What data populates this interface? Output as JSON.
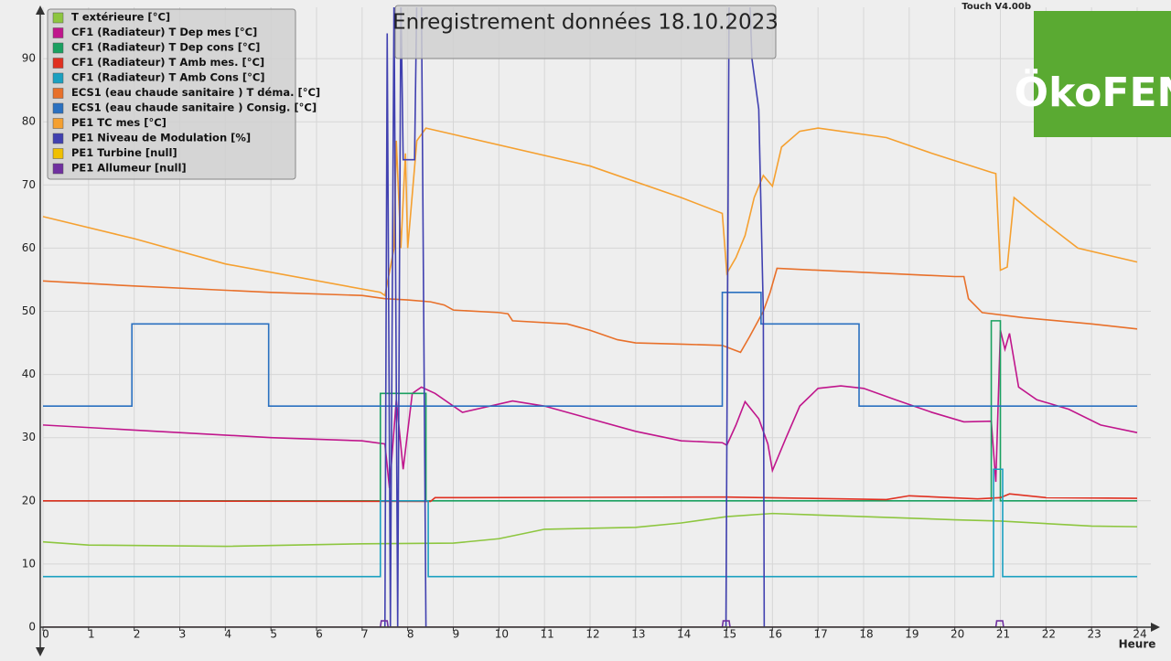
{
  "chart_data": {
    "type": "line",
    "title": "Enregistrement données  18.10.2023",
    "version": "Touch V4.00b",
    "logo": "ÖkoFEN",
    "x_label": "Heure",
    "xlim": [
      0,
      24
    ],
    "ylim": [
      0,
      98
    ],
    "xticks": [
      0,
      1,
      2,
      3,
      4,
      5,
      6,
      7,
      8,
      9,
      10,
      11,
      12,
      13,
      14,
      15,
      16,
      17,
      18,
      19,
      20,
      21,
      22,
      23,
      24
    ],
    "yticks": [
      0,
      10,
      20,
      30,
      40,
      50,
      60,
      70,
      80,
      90
    ],
    "grid": true,
    "series": [
      {
        "name": "T extérieure [°C]",
        "color": "#8dc63f",
        "x": [
          0,
          1,
          4,
          7,
          9,
          10,
          11,
          13,
          14,
          15,
          16,
          18,
          20,
          21,
          23,
          24
        ],
        "values": [
          13.5,
          13,
          12.8,
          13.2,
          13.3,
          14,
          15.5,
          15.8,
          16.5,
          17.5,
          18,
          17.5,
          17,
          16.8,
          16,
          15.9
        ]
      },
      {
        "name": "CF1 (Radiateur) T Dep mes [°C]",
        "color": "#c0168c",
        "x": [
          0,
          2,
          5,
          7,
          7.5,
          7.6,
          7.75,
          7.9,
          8.1,
          8.3,
          8.6,
          9.2,
          10.3,
          11,
          12,
          13,
          14,
          14.9,
          15,
          15.2,
          15.4,
          15.7,
          15.9,
          16,
          16.3,
          16.6,
          17,
          17.5,
          18,
          18.7,
          19.5,
          20.2,
          20.8,
          20.9,
          21,
          21.1,
          21.2,
          21.4,
          21.8,
          22.5,
          23.2,
          24
        ],
        "values": [
          32,
          31.2,
          30,
          29.5,
          29,
          22,
          36,
          25,
          37,
          38,
          37,
          34,
          35.8,
          35,
          33,
          31,
          29.5,
          29.2,
          28.8,
          32,
          35.7,
          33,
          29,
          24.8,
          30,
          35,
          37.8,
          38.2,
          37.8,
          36,
          34,
          32.5,
          32.6,
          23,
          47,
          44,
          46.5,
          38,
          36,
          34.5,
          32,
          30.8
        ]
      },
      {
        "name": "CF1 (Radiateur) T Dep cons [°C]",
        "color": "#1aa060",
        "x": [
          0,
          7.4,
          7.4,
          8.4,
          8.4,
          20.8,
          20.8,
          21,
          21,
          24
        ],
        "values": [
          20,
          20,
          37,
          37,
          20,
          20,
          48.5,
          48.5,
          20,
          20
        ]
      },
      {
        "name": "CF1 (Radiateur) T Amb mes. [°C]",
        "color": "#e03020",
        "x": [
          0,
          8.5,
          8.6,
          15,
          18.5,
          19,
          20.5,
          21,
          21.2,
          22,
          24
        ],
        "values": [
          20,
          19.9,
          20.5,
          20.6,
          20.2,
          20.8,
          20.3,
          20.5,
          21.1,
          20.5,
          20.4
        ]
      },
      {
        "name": "CF1 (Radiateur) T Amb Cons [°C]",
        "color": "#1aa0c0",
        "x": [
          0,
          7.4,
          7.4,
          8.45,
          8.45,
          20.85,
          20.85,
          21.05,
          21.05,
          24
        ],
        "values": [
          8,
          8,
          20,
          20,
          8,
          8,
          25,
          25,
          8,
          8
        ]
      },
      {
        "name": "ECS1 (eau chaude sanitaire ) T déma. [°C]",
        "color": "#e8702a",
        "x": [
          0,
          2,
          5,
          7,
          7.5,
          8,
          8.5,
          8.8,
          9,
          10,
          10.2,
          10.3,
          11.5,
          12,
          12.6,
          13,
          14,
          14.9,
          15.3,
          15.5,
          15.8,
          15.95,
          16.1,
          17,
          18.5,
          20,
          20.2,
          20.3,
          20.6,
          21.5,
          23,
          24
        ],
        "values": [
          54.8,
          54,
          53,
          52.5,
          52,
          51.8,
          51.5,
          51,
          50.2,
          49.8,
          49.6,
          48.5,
          48,
          47,
          45.5,
          45,
          44.8,
          44.6,
          43.5,
          46,
          50,
          53,
          56.8,
          56.5,
          56,
          55.5,
          55.5,
          52,
          49.8,
          49,
          48,
          47.2
        ]
      },
      {
        "name": "ECS1 (eau chaude sanitaire ) Consig. [°C]",
        "color": "#2a70c0",
        "x": [
          0,
          1.95,
          1.95,
          4.95,
          4.95,
          14.9,
          14.9,
          15.75,
          15.75,
          17.9,
          17.9,
          24
        ],
        "values": [
          35,
          35,
          48,
          48,
          35,
          35,
          53,
          53,
          48,
          48,
          35,
          35
        ]
      },
      {
        "name": "PE1 TC mes [°C]",
        "color": "#f5a030",
        "x": [
          0,
          2,
          4,
          7.4,
          7.5,
          7.7,
          7.75,
          7.85,
          7.95,
          8,
          8.2,
          8.4,
          9,
          12,
          14,
          14.9,
          15,
          15.2,
          15.4,
          15.6,
          15.8,
          16,
          16.2,
          16.6,
          17,
          18.5,
          19.5,
          20.8,
          20.9,
          21,
          21.15,
          21.3,
          21.8,
          22.7,
          24
        ],
        "values": [
          65,
          61.5,
          57.5,
          53,
          52.5,
          60,
          77,
          60,
          75,
          60,
          77,
          79,
          78,
          73,
          68,
          65.5,
          56,
          58.5,
          62,
          68,
          71.5,
          69.8,
          76,
          78.5,
          79,
          77.5,
          75,
          72,
          71.8,
          56.5,
          57,
          68,
          65,
          60,
          57.8
        ]
      },
      {
        "name": "PE1 Niveau de Modulation [%]",
        "color": "#4040b0",
        "x": [
          0,
          7.5,
          7.55,
          7.62,
          7.7,
          7.78,
          7.85,
          7.9,
          8.15,
          8.2,
          8.3,
          8.35,
          8.4,
          14.98,
          15.05,
          15.5,
          15.55,
          15.7,
          15.8,
          15.82,
          24
        ],
        "values": [
          0,
          0,
          94,
          0,
          100,
          0,
          100,
          74,
          74,
          100,
          100,
          50,
          0,
          0,
          100,
          100,
          90,
          82,
          50,
          0,
          0
        ]
      },
      {
        "name": "PE1 Turbine [null]",
        "color": "#f0c000",
        "x": [
          0,
          24
        ],
        "values": [
          0,
          0
        ]
      },
      {
        "name": "PE1 Allumeur [null]",
        "color": "#7030a0",
        "x": [
          0,
          7.4,
          7.42,
          7.55,
          7.57,
          14.9,
          14.92,
          15.05,
          15.07,
          20.9,
          20.92,
          21.05,
          21.07,
          24
        ],
        "values": [
          0,
          0,
          1,
          1,
          0,
          0,
          1,
          1,
          0,
          0,
          1,
          1,
          0,
          0
        ]
      }
    ]
  }
}
